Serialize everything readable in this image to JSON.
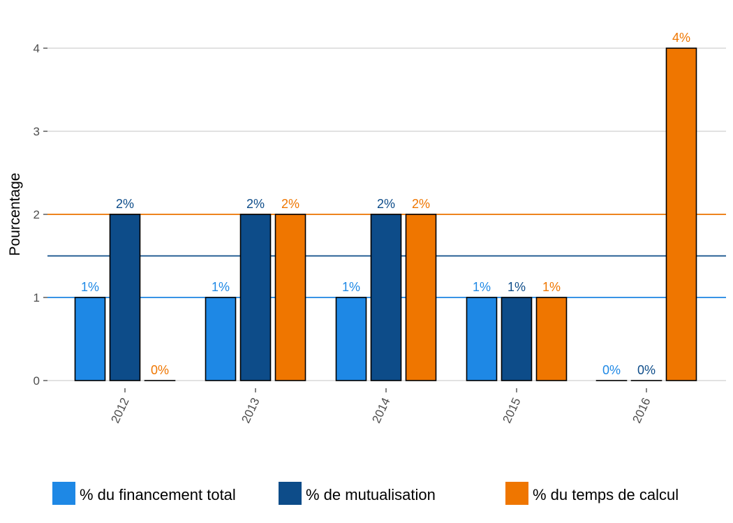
{
  "chart_data": {
    "type": "bar",
    "title": "",
    "xlabel": "",
    "ylabel": "Pourcentage",
    "categories": [
      "2012",
      "2013",
      "2014",
      "2015",
      "2016"
    ],
    "yticks": [
      "0",
      "1",
      "2",
      "3",
      "4"
    ],
    "ylim": [
      -0.2,
      4.4
    ],
    "grid": true,
    "legend_position": "bottom",
    "series": [
      {
        "name": "% du financement total",
        "color": "#1e88e5",
        "values": [
          1,
          1,
          1,
          1,
          0
        ],
        "labels": [
          "1%",
          "1%",
          "1%",
          "1%",
          "0%"
        ]
      },
      {
        "name": "% de mutualisation",
        "color": "#0d4c89",
        "values": [
          2,
          2,
          2,
          1,
          0
        ],
        "labels": [
          "2%",
          "2%",
          "2%",
          "1%",
          "0%"
        ]
      },
      {
        "name": "% du temps de calcul",
        "color": "#ef7600",
        "values": [
          0,
          2,
          2,
          1,
          4
        ],
        "labels": [
          "0%",
          "2%",
          "2%",
          "1%",
          "4%"
        ]
      }
    ],
    "reference_lines": [
      {
        "value": 1,
        "color": "#1e88e5"
      },
      {
        "value": 1.5,
        "color": "#0d4c89"
      },
      {
        "value": 2,
        "color": "#ef7600"
      }
    ]
  }
}
